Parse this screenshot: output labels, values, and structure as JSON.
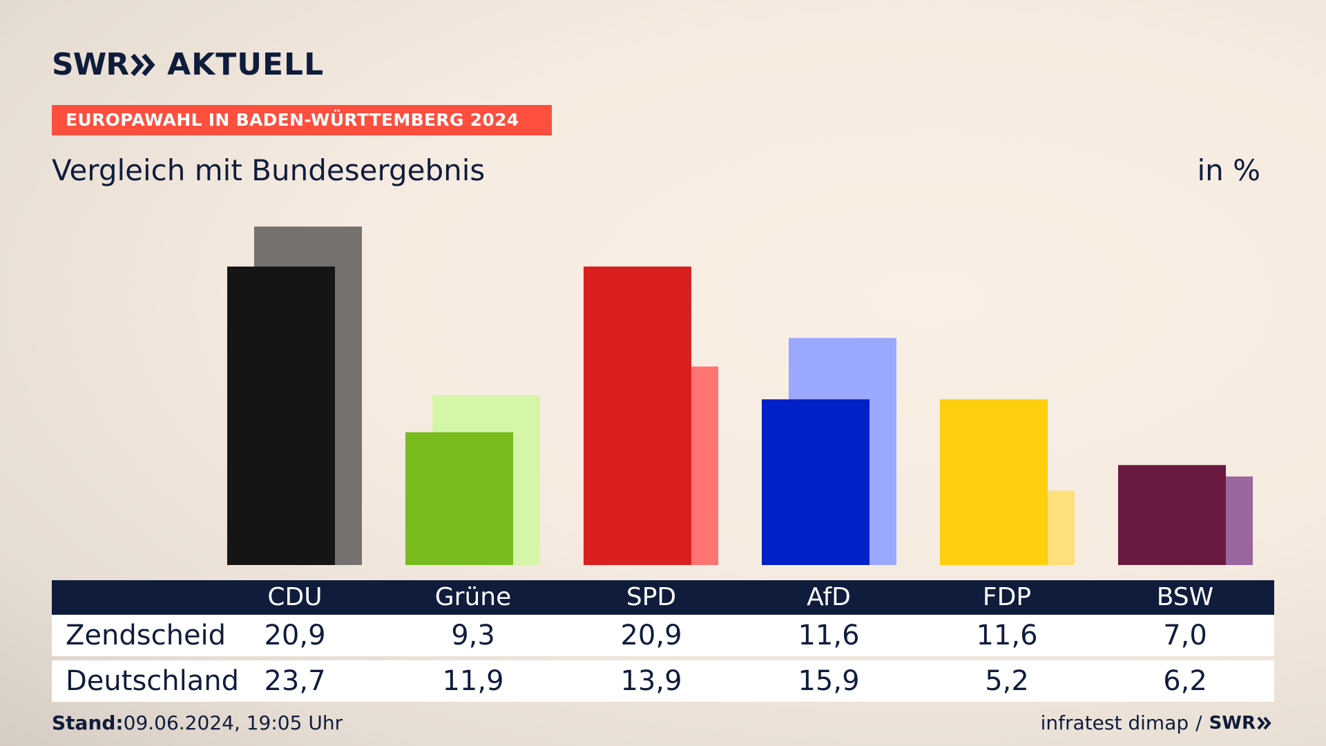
{
  "brand": {
    "logo_swr": "SWR",
    "logo_aktuell": "AKTUELL"
  },
  "header": {
    "tag": "EUROPAWAHL IN BADEN-WÜRTTEMBERG 2024",
    "subtitle": "Vergleich mit Bundesergebnis",
    "unit": "in %"
  },
  "chart_data": {
    "type": "bar",
    "categories": [
      "CDU",
      "Grüne",
      "SPD",
      "AfD",
      "FDP",
      "BSW"
    ],
    "series": [
      {
        "name": "Zendscheid",
        "values": [
          20.9,
          9.3,
          20.9,
          11.6,
          11.6,
          7.0
        ],
        "colors": [
          "#151515",
          "#78bc1e",
          "#d91f20",
          "#0020c8",
          "#ffcf0d",
          "#6a1a40"
        ]
      },
      {
        "name": "Deutschland",
        "values": [
          23.7,
          11.9,
          13.9,
          15.9,
          5.2,
          6.2
        ],
        "colors": [
          "#74716e",
          "#d5f5a8",
          "#ff7370",
          "#9aa8ff",
          "#ffe07a",
          "#9a669e"
        ]
      }
    ],
    "ylim": [
      0,
      23.7
    ],
    "grid": false,
    "legend": "none"
  },
  "table": {
    "headers": [
      "CDU",
      "Grüne",
      "SPD",
      "AfD",
      "FDP",
      "BSW"
    ],
    "rows": [
      {
        "label": "Zendscheid",
        "values": [
          "20,9",
          "9,3",
          "20,9",
          "11,6",
          "11,6",
          "7,0"
        ]
      },
      {
        "label": "Deutschland",
        "values": [
          "23,7",
          "11,9",
          "13,9",
          "15,9",
          "5,2",
          "6,2"
        ]
      }
    ]
  },
  "footer": {
    "stand_label": "Stand:",
    "stand_value": "09.06.2024, 19:05 Uhr",
    "source": "infratest dimap",
    "separator": "/",
    "logo_swr": "SWR"
  }
}
